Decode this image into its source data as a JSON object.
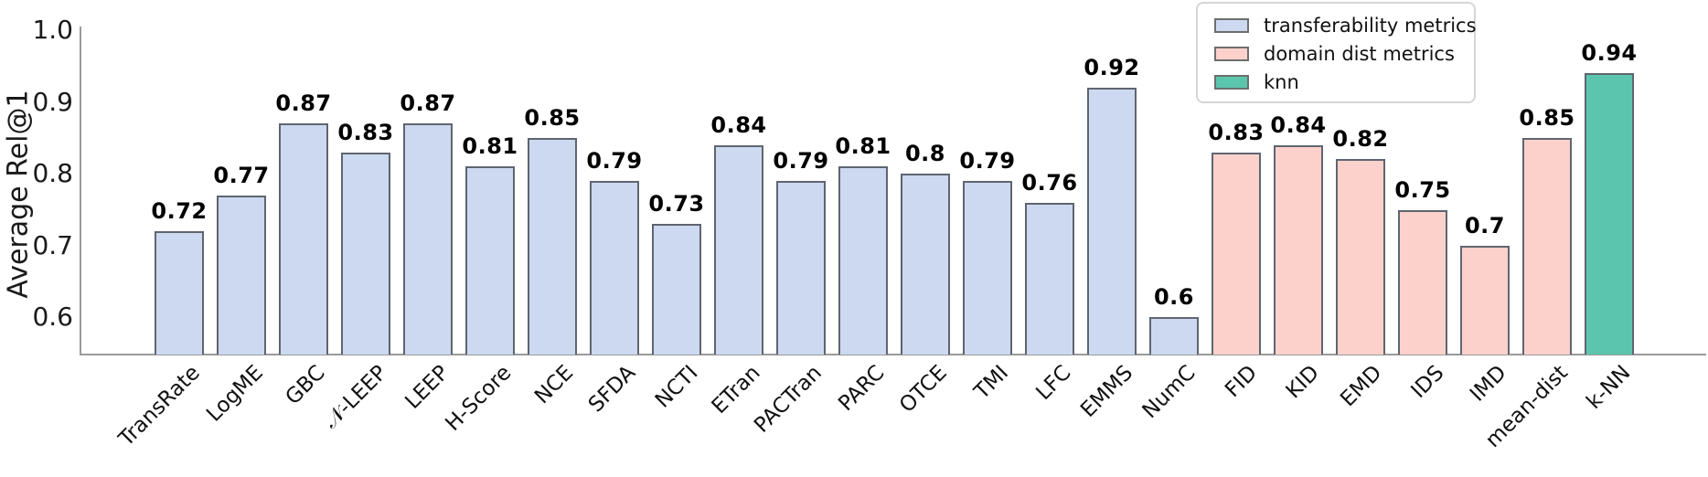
{
  "chart": {
    "ylabel": "Average Rel@1",
    "yticks": [
      "1.0",
      "0.9",
      "0.8",
      "0.7",
      "0.6"
    ]
  },
  "legend": {
    "items": [
      {
        "label": "transferability metrics",
        "color": "#ccd9f0"
      },
      {
        "label": "domain dist metrics",
        "color": "#fcd1cb"
      },
      {
        "label": "knn",
        "color": "#5cc5ae"
      }
    ]
  },
  "chart_data": {
    "type": "bar",
    "title": "",
    "xlabel": "",
    "ylabel": "Average Rel@1",
    "ylim": [
      0.55,
      1.0
    ],
    "yticks": [
      1.0,
      0.9,
      0.8,
      0.7,
      0.6
    ],
    "grid": false,
    "legend_position": "upper right",
    "value_labels": true,
    "categories": [
      "TransRate",
      "LogME",
      "GBC",
      "𝒩-LEEP",
      "LEEP",
      "H-Score",
      "NCE",
      "SFDA",
      "NCTI",
      "ETran",
      "PACTran",
      "PARC",
      "OTCE",
      "TMI",
      "LFC",
      "EMMS",
      "NumC",
      "FID",
      "KID",
      "EMD",
      "IDS",
      "IMD",
      "mean-dist",
      "k-NN"
    ],
    "values": [
      0.72,
      0.77,
      0.87,
      0.83,
      0.87,
      0.81,
      0.85,
      0.79,
      0.73,
      0.84,
      0.79,
      0.81,
      0.8,
      0.79,
      0.76,
      0.92,
      0.6,
      0.83,
      0.84,
      0.82,
      0.75,
      0.7,
      0.85,
      0.94
    ],
    "groups": [
      {
        "name": "transferability metrics",
        "color": "#ccd9f0",
        "count": 17
      },
      {
        "name": "domain dist metrics",
        "color": "#fcd1cb",
        "count": 6
      },
      {
        "name": "knn",
        "color": "#5cc5ae",
        "count": 1
      }
    ],
    "bar_edge_color": "#5f6570"
  }
}
